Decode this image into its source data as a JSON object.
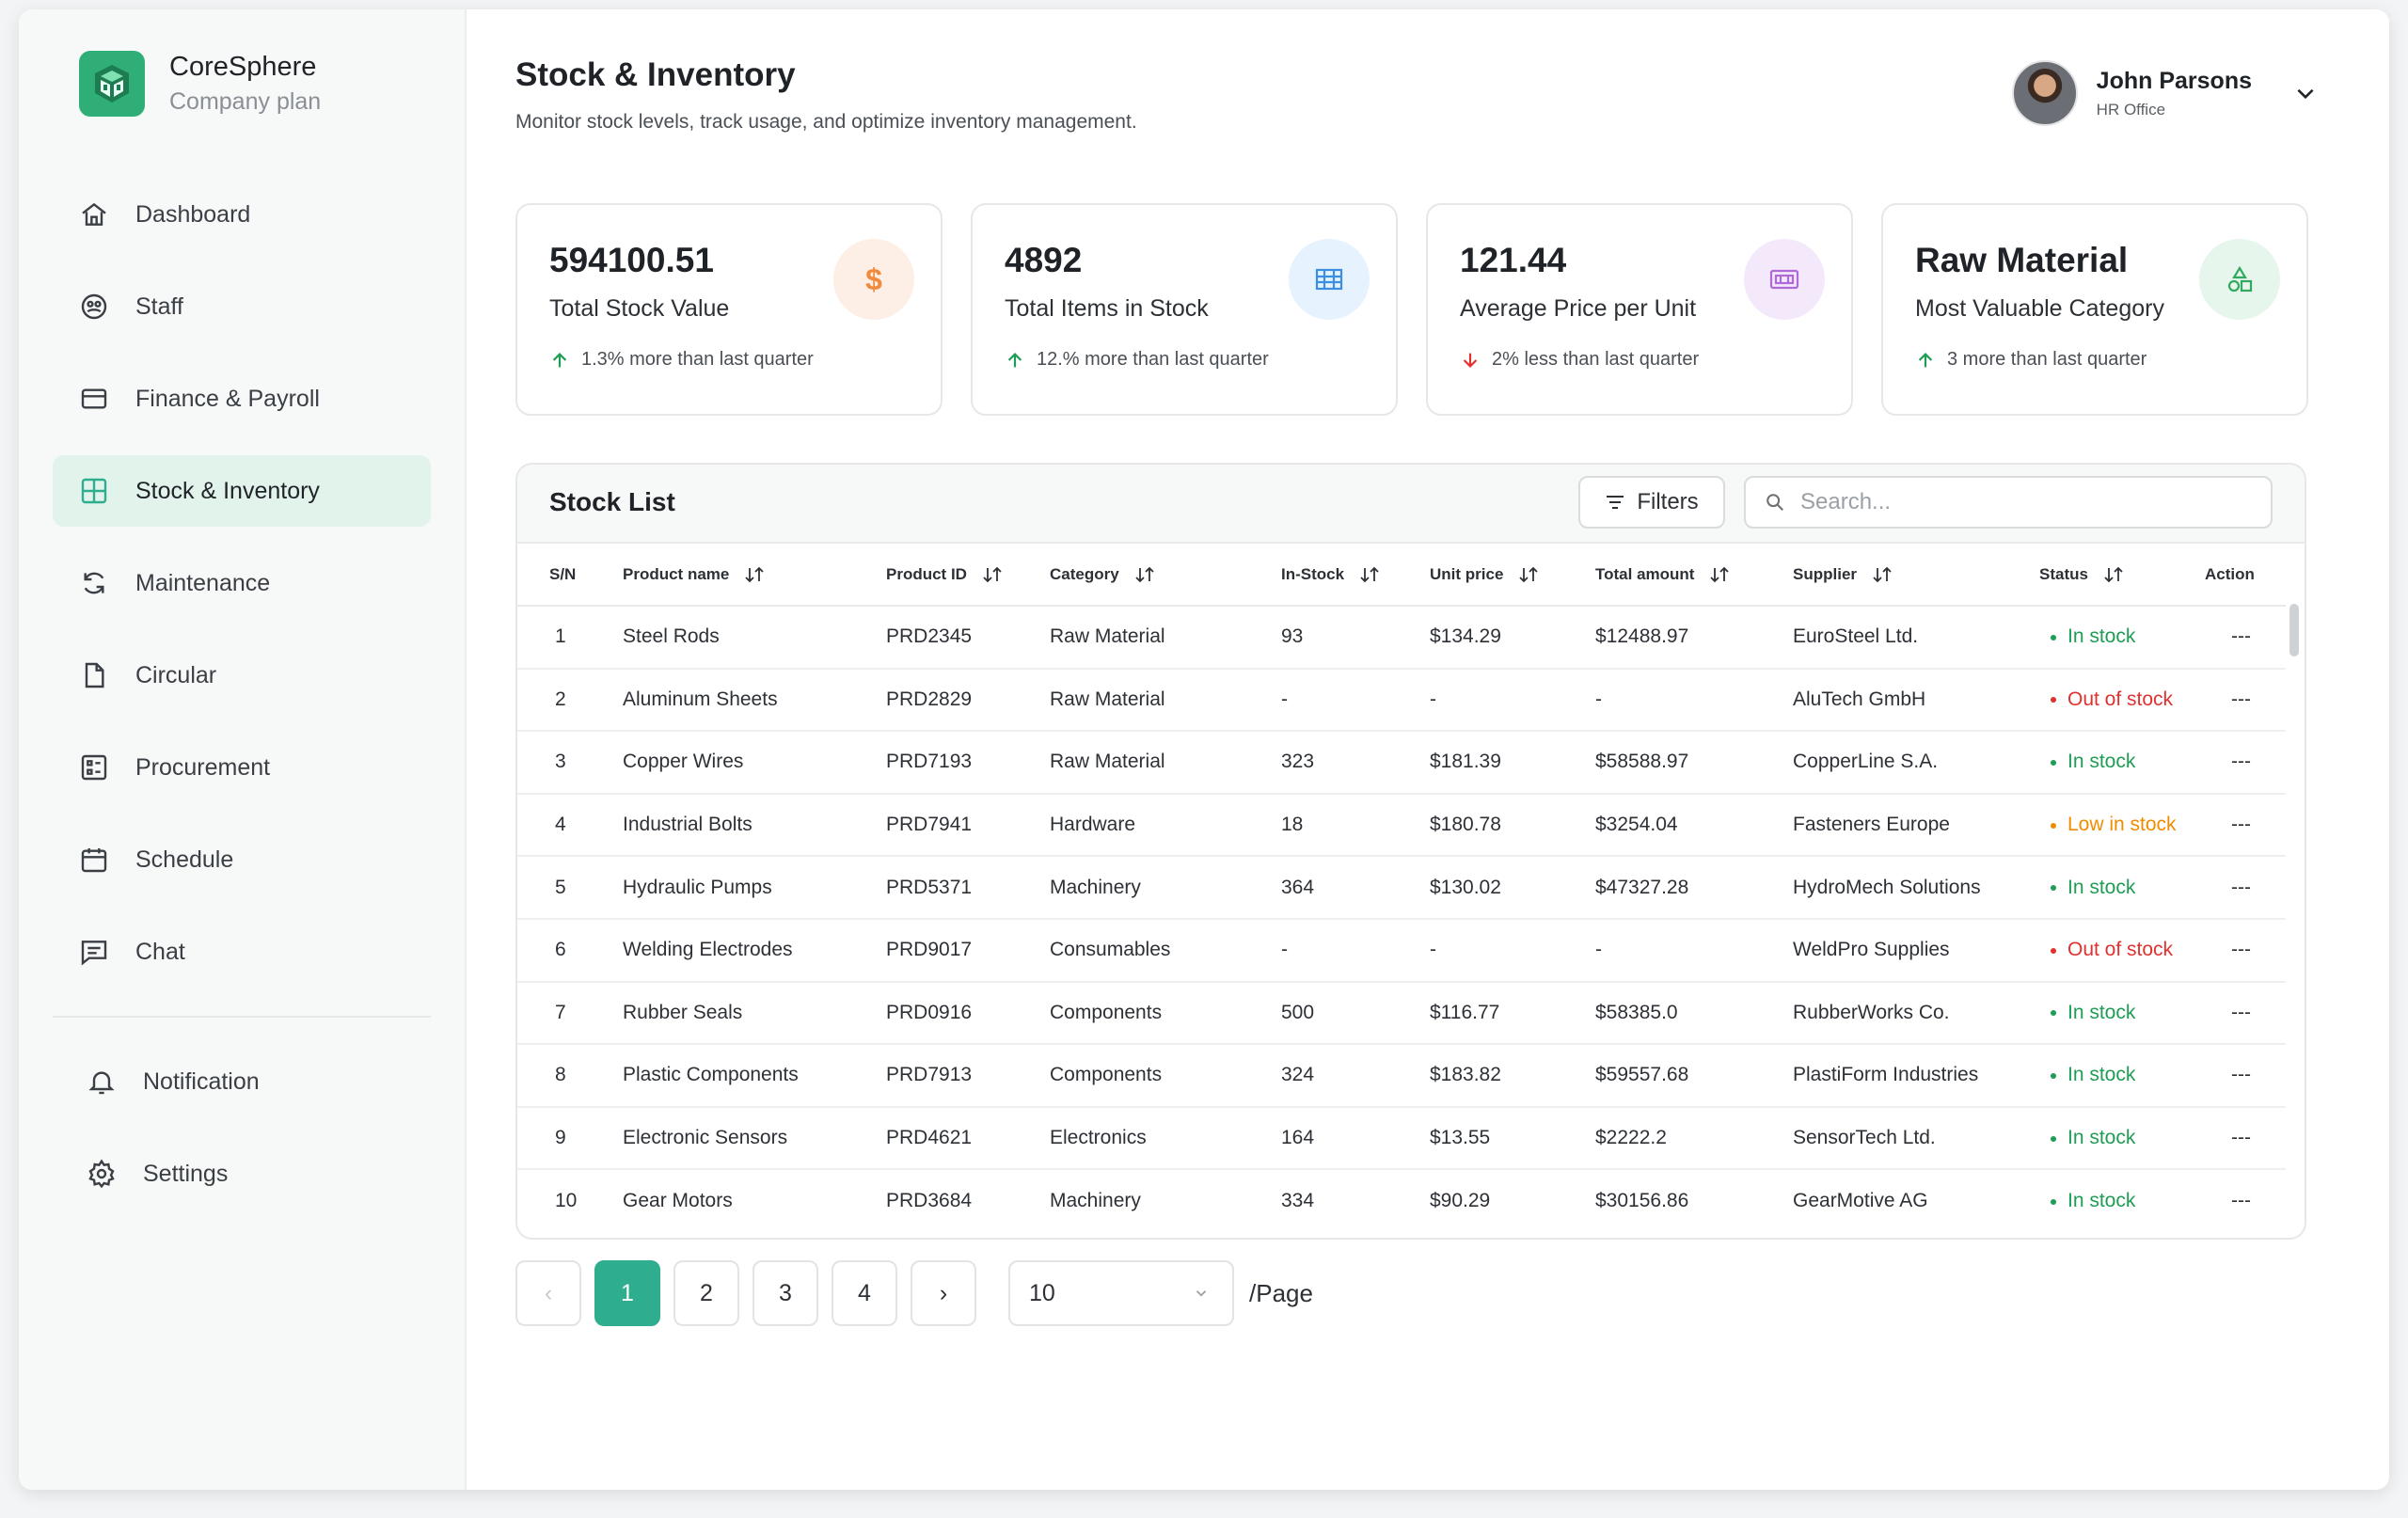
{
  "brand": {
    "name": "CoreSphere",
    "plan": "Company plan"
  },
  "nav": {
    "items": [
      {
        "key": "dashboard",
        "label": "Dashboard",
        "icon": "home-icon"
      },
      {
        "key": "staff",
        "label": "Staff",
        "icon": "staff-icon"
      },
      {
        "key": "finance",
        "label": "Finance & Payroll",
        "icon": "card-icon"
      },
      {
        "key": "stock",
        "label": "Stock & Inventory",
        "icon": "grid-icon",
        "active": true
      },
      {
        "key": "maintenance",
        "label": "Maintenance",
        "icon": "refresh-icon"
      },
      {
        "key": "circular",
        "label": "Circular",
        "icon": "file-icon"
      },
      {
        "key": "procurement",
        "label": "Procurement",
        "icon": "list-icon"
      },
      {
        "key": "schedule",
        "label": "Schedule",
        "icon": "calendar-icon"
      },
      {
        "key": "chat",
        "label": "Chat",
        "icon": "chat-icon"
      }
    ],
    "bottom": [
      {
        "key": "notification",
        "label": "Notification",
        "icon": "bell-icon"
      },
      {
        "key": "settings",
        "label": "Settings",
        "icon": "gear-icon"
      }
    ]
  },
  "header": {
    "title": "Stock & Inventory",
    "subtitle": "Monitor stock levels, track usage, and optimize inventory management."
  },
  "user": {
    "name": "John Parsons",
    "role": "HR Office"
  },
  "cards": [
    {
      "value": "594100.51",
      "label": "Total Stock Value",
      "trend": "1.3% more than last quarter",
      "direction": "up",
      "icon": "dollar-icon",
      "icon_bg": "#fdeee6",
      "icon_color": "#f08a3c"
    },
    {
      "value": "4892",
      "label": "Total Items in Stock",
      "trend": "12.% more than last quarter",
      "direction": "up",
      "icon": "grid-table-icon",
      "icon_bg": "#e6f2fd",
      "icon_color": "#3a8fe0"
    },
    {
      "value": "121.44",
      "label": "Average Price per Unit",
      "trend": "2% less than last quarter",
      "direction": "down",
      "icon": "cash-icon",
      "icon_bg": "#f3e9fb",
      "icon_color": "#b06ad8"
    },
    {
      "value": "Raw Material",
      "label": "Most Valuable Category",
      "trend": "3 more than last quarter",
      "direction": "up",
      "icon": "shapes-icon",
      "icon_bg": "#e6f6ec",
      "icon_color": "#33a85f"
    }
  ],
  "stock_list": {
    "title": "Stock List",
    "filters_label": "Filters",
    "search_placeholder": "Search...",
    "columns": [
      "S/N",
      "Product name",
      "Product ID",
      "Category",
      "In-Stock",
      "Unit price",
      "Total amount",
      "Supplier",
      "Status",
      "Action"
    ],
    "rows": [
      {
        "sn": "1",
        "name": "Steel Rods",
        "id": "PRD2345",
        "category": "Raw Material",
        "in_stock": "93",
        "unit_price": "$134.29",
        "total": "$12488.97",
        "supplier": "EuroSteel Ltd.",
        "status": "In stock",
        "status_type": "in",
        "action": "---"
      },
      {
        "sn": "2",
        "name": "Aluminum Sheets",
        "id": "PRD2829",
        "category": "Raw Material",
        "in_stock": "-",
        "unit_price": "-",
        "total": "-",
        "supplier": "AluTech GmbH",
        "status": "Out of stock",
        "status_type": "out",
        "action": "---"
      },
      {
        "sn": "3",
        "name": "Copper Wires",
        "id": "PRD7193",
        "category": "Raw Material",
        "in_stock": "323",
        "unit_price": "$181.39",
        "total": "$58588.97",
        "supplier": "CopperLine S.A.",
        "status": "In stock",
        "status_type": "in",
        "action": "---"
      },
      {
        "sn": "4",
        "name": "Industrial Bolts",
        "id": "PRD7941",
        "category": "Hardware",
        "in_stock": "18",
        "unit_price": "$180.78",
        "total": "$3254.04",
        "supplier": "Fasteners Europe",
        "status": "Low in stock",
        "status_type": "low",
        "action": "---"
      },
      {
        "sn": "5",
        "name": "Hydraulic Pumps",
        "id": "PRD5371",
        "category": "Machinery",
        "in_stock": "364",
        "unit_price": "$130.02",
        "total": "$47327.28",
        "supplier": "HydroMech Solutions",
        "status": "In stock",
        "status_type": "in",
        "action": "---"
      },
      {
        "sn": "6",
        "name": "Welding Electrodes",
        "id": "PRD9017",
        "category": "Consumables",
        "in_stock": "-",
        "unit_price": "-",
        "total": "-",
        "supplier": "WeldPro Supplies",
        "status": "Out of stock",
        "status_type": "out",
        "action": "---"
      },
      {
        "sn": "7",
        "name": "Rubber Seals",
        "id": "PRD0916",
        "category": "Components",
        "in_stock": "500",
        "unit_price": "$116.77",
        "total": "$58385.0",
        "supplier": "RubberWorks Co.",
        "status": "In stock",
        "status_type": "in",
        "action": "---"
      },
      {
        "sn": "8",
        "name": "Plastic Components",
        "id": "PRD7913",
        "category": "Components",
        "in_stock": "324",
        "unit_price": "$183.82",
        "total": "$59557.68",
        "supplier": "PlastiForm Industries",
        "status": "In stock",
        "status_type": "in",
        "action": "---"
      },
      {
        "sn": "9",
        "name": "Electronic Sensors",
        "id": "PRD4621",
        "category": "Electronics",
        "in_stock": "164",
        "unit_price": "$13.55",
        "total": "$2222.2",
        "supplier": "SensorTech Ltd.",
        "status": "In stock",
        "status_type": "in",
        "action": "---"
      },
      {
        "sn": "10",
        "name": "Gear Motors",
        "id": "PRD3684",
        "category": "Machinery",
        "in_stock": "334",
        "unit_price": "$90.29",
        "total": "$30156.86",
        "supplier": "GearMotive AG",
        "status": "In stock",
        "status_type": "in",
        "action": "---"
      }
    ]
  },
  "pagination": {
    "prev": "‹",
    "next": "›",
    "pages": [
      "1",
      "2",
      "3",
      "4"
    ],
    "current": "1",
    "per_page": "10",
    "per_page_suffix": "/Page"
  },
  "colors": {
    "accent": "#2fae8f",
    "status_in": "#1f9d55",
    "status_out": "#e03131",
    "status_low": "#f08c00",
    "trend_up": "#1f9d55",
    "trend_down": "#e03131"
  }
}
